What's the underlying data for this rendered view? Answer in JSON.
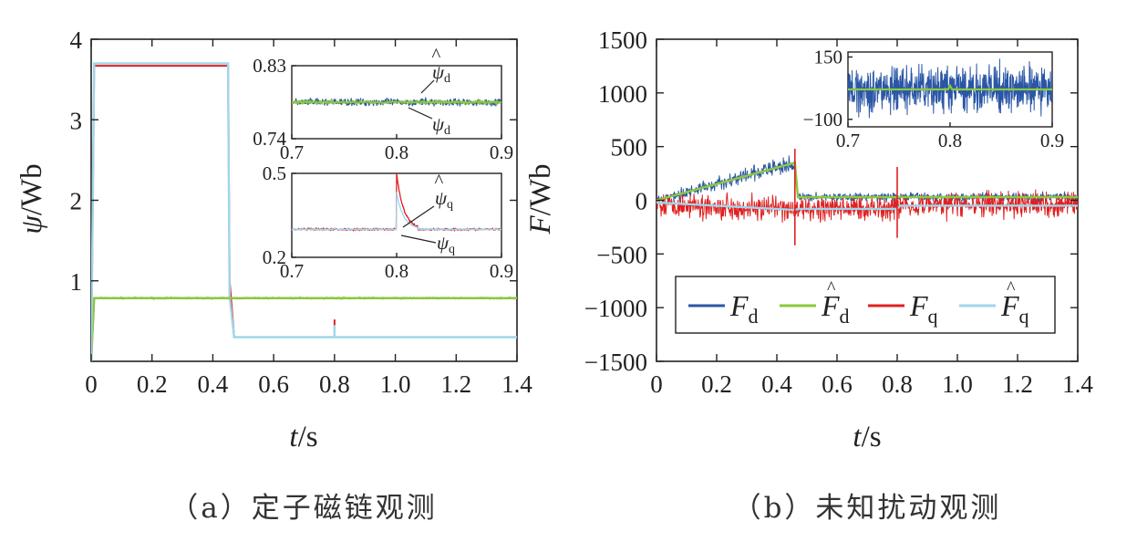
{
  "colors": {
    "Fd": "#2a56a6",
    "Fd_hat": "#8cc83c",
    "Fq": "#e02020",
    "Fq_hat": "#9fd6ec",
    "psi_d": "#2a56a6",
    "psi_d_hat": "#8cc83c",
    "psi_q": "#e02020",
    "psi_q_hat": "#9fd6ec",
    "axis": "#222222"
  },
  "chart_data": [
    {
      "type": "line",
      "panel": "a",
      "caption": "（a）定子磁链观测",
      "xlabel_var": "t",
      "xlabel_unit": "/s",
      "ylabel_var": "ψ",
      "ylabel_unit": "/Wb",
      "xlim": [
        0,
        1.4
      ],
      "ylim": [
        0,
        4
      ],
      "xticks": [
        "0",
        "0.2",
        "0.4",
        "0.6",
        "0.8",
        "1.0",
        "1.2",
        "1.4"
      ],
      "yticks": [
        "1",
        "2",
        "3",
        "4"
      ],
      "series": [
        {
          "key": "psi_d",
          "x": [
            0,
            0.01,
            1.4
          ],
          "y": [
            0,
            0.785,
            0.785
          ]
        },
        {
          "key": "psi_d_hat",
          "x": [
            0,
            0.01,
            1.4
          ],
          "y": [
            0,
            0.785,
            0.785
          ]
        },
        {
          "key": "psi_q",
          "x": [
            0,
            0.01,
            0.45,
            0.455,
            0.47,
            0.8,
            0.8,
            0.8,
            1.4
          ],
          "y": [
            0,
            3.67,
            3.67,
            1.0,
            0.3,
            0.3,
            0.52,
            0.3,
            0.3
          ]
        },
        {
          "key": "psi_q_hat",
          "x": [
            0,
            0.01,
            0.45,
            0.455,
            0.47,
            0.8,
            0.8,
            0.8,
            1.4
          ],
          "y": [
            0,
            3.7,
            3.7,
            0.8,
            0.3,
            0.3,
            0.45,
            0.3,
            0.3
          ]
        }
      ],
      "insets": [
        {
          "xlim": [
            0.7,
            0.9
          ],
          "ylim": [
            0.74,
            0.83
          ],
          "xticks": [
            "0.7",
            "0.8",
            "0.9"
          ],
          "yticks": [
            "0.83",
            "0.74"
          ],
          "series": [
            {
              "key": "psi_d",
              "level": 0.785,
              "noise": 0.006
            },
            {
              "key": "psi_d_hat",
              "level": 0.785,
              "noise": 0.003
            }
          ],
          "annotations": [
            {
              "var": "ψ",
              "sub": "d",
              "hat": true
            },
            {
              "var": "ψ",
              "sub": "d",
              "hat": false
            }
          ]
        },
        {
          "xlim": [
            0.7,
            0.9
          ],
          "ylim": [
            0.2,
            0.5
          ],
          "xticks": [
            "0.7",
            "0.8",
            "0.9"
          ],
          "yticks": [
            "0.5",
            "0.2"
          ],
          "series": [
            {
              "key": "psi_q",
              "level": 0.3,
              "noise": 0.006,
              "spike_at": 0.8,
              "spike_to": 0.5
            },
            {
              "key": "psi_q_hat",
              "level": 0.3,
              "noise": 0.004,
              "spike_at": 0.8,
              "spike_to": 0.43
            }
          ],
          "annotations": [
            {
              "var": "ψ",
              "sub": "q",
              "hat": true
            },
            {
              "var": "ψ",
              "sub": "q",
              "hat": false
            }
          ]
        }
      ]
    },
    {
      "type": "line",
      "panel": "b",
      "caption": "（b）未知扰动观测",
      "xlabel_var": "t",
      "xlabel_unit": "/s",
      "ylabel_var": "F",
      "ylabel_unit": "/Wb",
      "xlim": [
        0,
        1.4
      ],
      "ylim": [
        -1500,
        1500
      ],
      "xticks": [
        "0",
        "0.2",
        "0.4",
        "0.6",
        "0.8",
        "1.0",
        "1.2",
        "1.4"
      ],
      "yticks": [
        "1500",
        "1000",
        "500",
        "0",
        "−500",
        "−1000",
        "−1500"
      ],
      "legend_position": "lower-right",
      "legend": [
        {
          "key": "Fd",
          "var": "F",
          "sub": "d",
          "hat": false
        },
        {
          "key": "Fd_hat",
          "var": "F",
          "sub": "d",
          "hat": true
        },
        {
          "key": "Fq",
          "var": "F",
          "sub": "q",
          "hat": false
        },
        {
          "key": "Fq_hat",
          "var": "F",
          "sub": "q",
          "hat": true
        }
      ],
      "series": [
        {
          "key": "Fd",
          "x": [
            0,
            0.46,
            0.47,
            0.8,
            1.4
          ],
          "y": [
            0,
            350,
            30,
            30,
            30
          ],
          "noise": [
            60,
            130,
            50,
            60,
            60
          ]
        },
        {
          "key": "Fq",
          "x": [
            0,
            0.46,
            0.47,
            0.8,
            0.81,
            1.4
          ],
          "y": [
            -30,
            -90,
            -90,
            -60,
            -40,
            -40
          ],
          "noise": [
            170,
            170,
            170,
            170,
            170,
            170
          ]
        },
        {
          "key": "Fd_hat",
          "x": [
            0,
            0.46,
            0.47,
            0.8,
            1.4
          ],
          "y": [
            0,
            350,
            30,
            30,
            30
          ]
        },
        {
          "key": "Fq_hat",
          "x": [
            0,
            0.46,
            0.47,
            0.8,
            0.81,
            1.4
          ],
          "y": [
            -20,
            -90,
            -80,
            -80,
            -50,
            -50
          ]
        }
      ],
      "inset": {
        "xlim": [
          0.7,
          0.9
        ],
        "ylim": [
          -130,
          170
        ],
        "xticks": [
          "0.7",
          "0.8",
          "0.9"
        ],
        "yticks": [
          "150",
          "−100"
        ],
        "series": [
          {
            "key": "Fd",
            "level": 20,
            "noise": 130
          },
          {
            "key": "Fd_hat",
            "level": 20,
            "noise": 0,
            "spike_at": 0.8,
            "spike_to": 35
          }
        ]
      }
    }
  ]
}
